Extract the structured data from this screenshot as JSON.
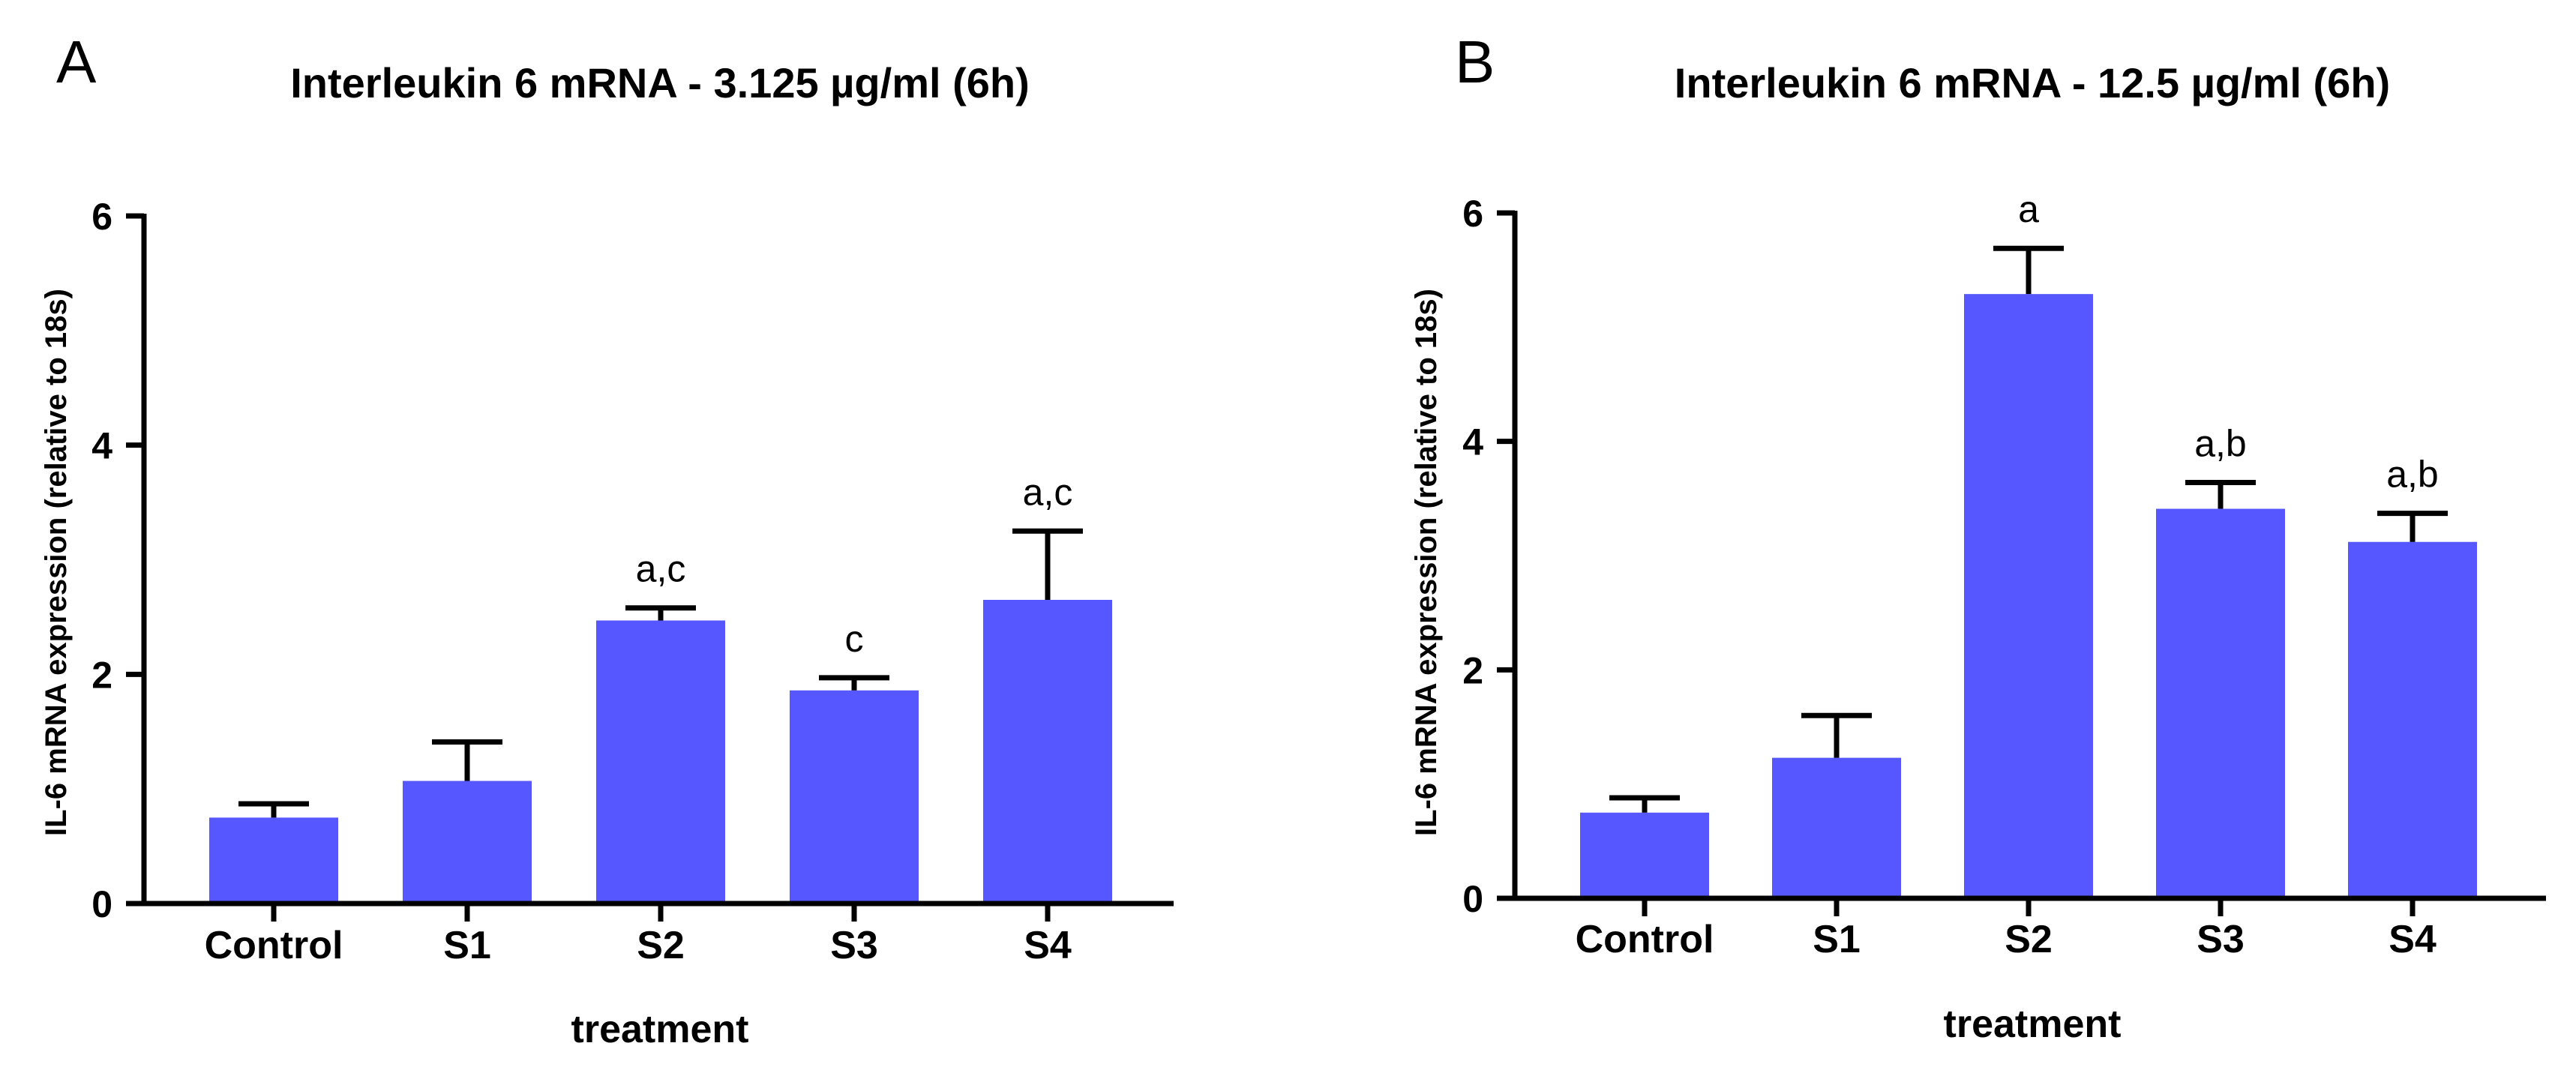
{
  "chart_data": [
    {
      "type": "bar",
      "panel_label": "A",
      "title": "Interleukin 6 mRNA - 3.125 µg/ml (6h)",
      "xlabel": "treatment",
      "ylabel": "IL-6 mRNA expression (relative to 18s)",
      "categories": [
        "Control",
        "S1",
        "S2",
        "S3",
        "S4"
      ],
      "values": [
        0.75,
        1.07,
        2.47,
        1.86,
        2.65
      ],
      "errors": [
        0.12,
        0.34,
        0.11,
        0.11,
        0.6
      ],
      "annotations": [
        "",
        "",
        "a,c",
        "c",
        "a,c"
      ],
      "ylim": [
        0,
        6
      ],
      "yticks": [
        0,
        2,
        4,
        6
      ],
      "bar_color": "#5757ff"
    },
    {
      "type": "bar",
      "panel_label": "B",
      "title": "Interleukin 6 mRNA - 12.5 µg/ml (6h)",
      "xlabel": "treatment",
      "ylabel": "IL-6 mRNA expression (relative to 18s)",
      "categories": [
        "Control",
        "S1",
        "S2",
        "S3",
        "S4"
      ],
      "values": [
        0.75,
        1.23,
        5.29,
        3.41,
        3.12
      ],
      "errors": [
        0.13,
        0.37,
        0.4,
        0.23,
        0.25
      ],
      "annotations": [
        "",
        "",
        "a",
        "a,b",
        "a,b"
      ],
      "ylim": [
        0,
        6
      ],
      "yticks": [
        0,
        2,
        4,
        6
      ],
      "bar_color": "#5757ff"
    }
  ]
}
